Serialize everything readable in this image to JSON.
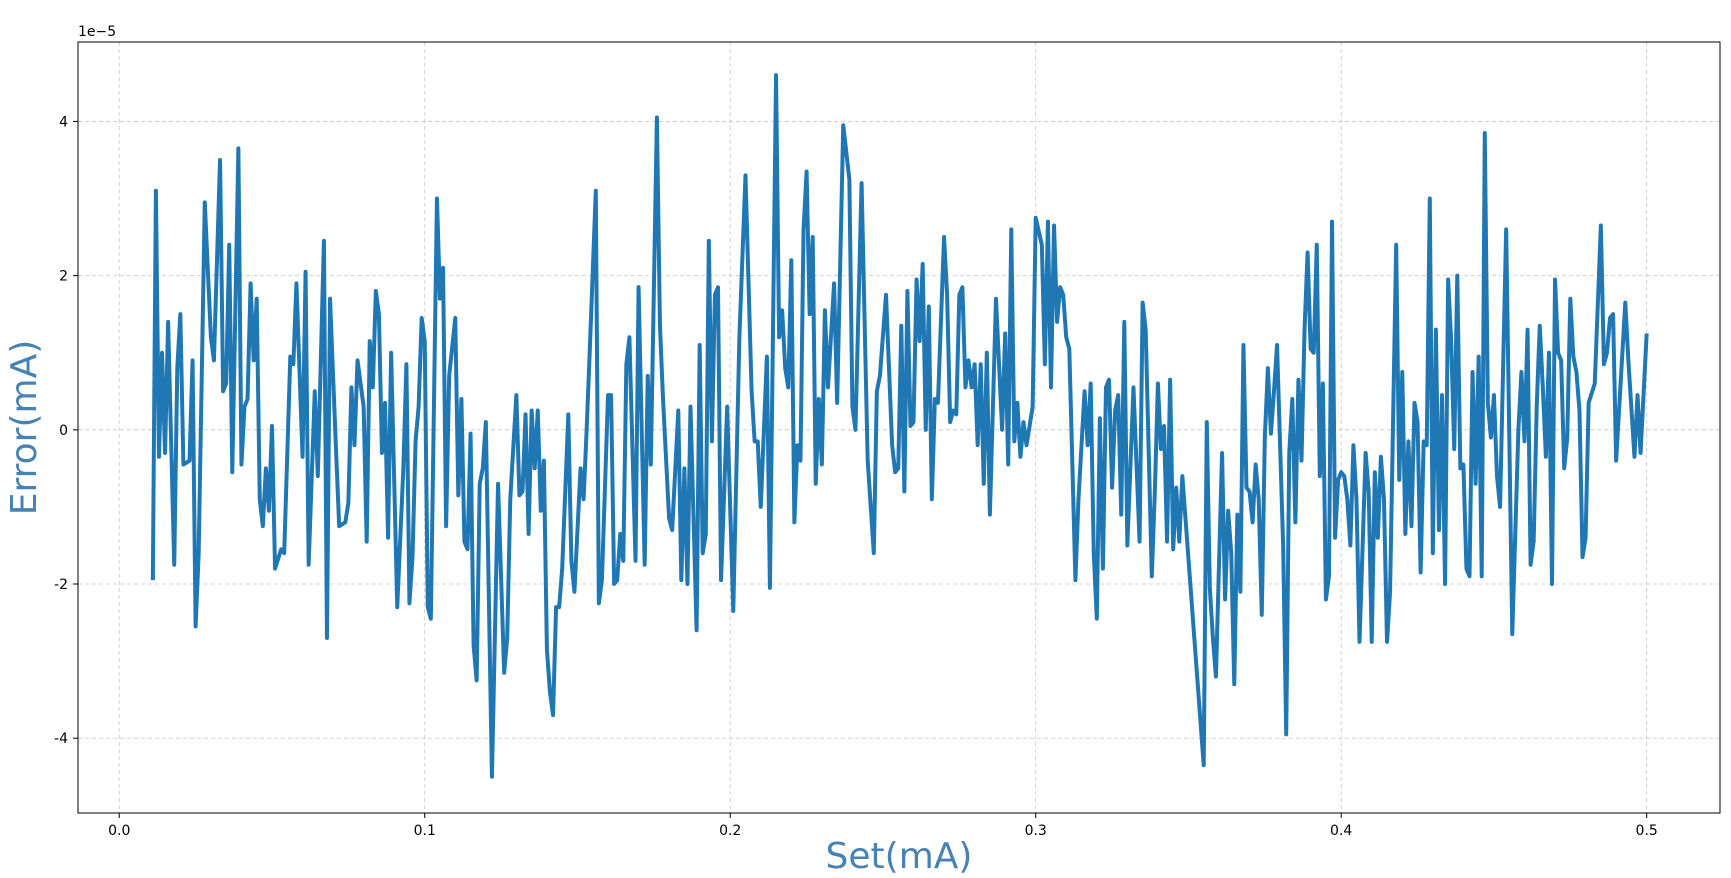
{
  "chart_data": {
    "type": "line",
    "xlabel": "Set(mA)",
    "ylabel": "Error(mA)",
    "offset_text": "1e−5",
    "label_color": "#4682b4",
    "color": "#1f77b4",
    "grid": true,
    "xlim": [
      -0.0135,
      0.524
    ],
    "ylim": [
      -4.97,
      5.03
    ],
    "xticks": [
      {
        "value": 0,
        "label": "0.0"
      },
      0.1,
      0.2,
      0.3,
      0.4,
      0.5
    ],
    "yticks": [
      -4,
      -2,
      0,
      2,
      4
    ],
    "x": [
      0.011,
      0.012,
      0.013,
      0.014,
      0.015,
      0.016,
      0.018,
      0.019,
      0.02,
      0.021,
      0.023,
      0.024,
      0.025,
      0.026,
      0.028,
      0.03,
      0.031,
      0.033,
      0.034,
      0.035,
      0.036,
      0.037,
      0.039,
      0.04,
      0.041,
      0.042,
      0.043,
      0.044,
      0.045,
      0.046,
      0.047,
      0.048,
      0.049,
      0.05,
      0.051,
      0.053,
      0.054,
      0.056,
      0.057,
      0.058,
      0.06,
      0.061,
      0.062,
      0.064,
      0.065,
      0.067,
      0.068,
      0.069,
      0.071,
      0.072,
      0.074,
      0.075,
      0.076,
      0.077,
      0.078,
      0.08,
      0.081,
      0.082,
      0.083,
      0.084,
      0.085,
      0.086,
      0.087,
      0.088,
      0.089,
      0.091,
      0.093,
      0.094,
      0.095,
      0.096,
      0.097,
      0.098,
      0.099,
      0.1,
      0.101,
      0.102,
      0.104,
      0.105,
      0.106,
      0.107,
      0.108,
      0.11,
      0.111,
      0.112,
      0.113,
      0.114,
      0.115,
      0.116,
      0.117,
      0.118,
      0.119,
      0.12,
      0.122,
      0.124,
      0.126,
      0.127,
      0.128,
      0.13,
      0.131,
      0.132,
      0.133,
      0.134,
      0.135,
      0.136,
      0.137,
      0.138,
      0.139,
      0.14,
      0.141,
      0.142,
      0.143,
      0.144,
      0.145,
      0.147,
      0.148,
      0.149,
      0.151,
      0.152,
      0.153,
      0.154,
      0.156,
      0.157,
      0.158,
      0.16,
      0.161,
      0.162,
      0.163,
      0.164,
      0.165,
      0.166,
      0.167,
      0.169,
      0.17,
      0.172,
      0.173,
      0.174,
      0.176,
      0.177,
      0.178,
      0.18,
      0.181,
      0.183,
      0.184,
      0.185,
      0.186,
      0.187,
      0.189,
      0.19,
      0.191,
      0.192,
      0.193,
      0.194,
      0.195,
      0.196,
      0.197,
      0.199,
      0.201,
      0.203,
      0.205,
      0.207,
      0.208,
      0.209,
      0.21,
      0.212,
      0.213,
      0.215,
      0.216,
      0.217,
      0.218,
      0.219,
      0.22,
      0.221,
      0.222,
      0.223,
      0.224,
      0.225,
      0.226,
      0.227,
      0.228,
      0.229,
      0.23,
      0.231,
      0.232,
      0.234,
      0.235,
      0.237,
      0.239,
      0.24,
      0.241,
      0.243,
      0.245,
      0.247,
      0.248,
      0.249,
      0.251,
      0.253,
      0.254,
      0.255,
      0.256,
      0.257,
      0.258,
      0.259,
      0.26,
      0.261,
      0.262,
      0.263,
      0.264,
      0.265,
      0.266,
      0.267,
      0.268,
      0.27,
      0.271,
      0.272,
      0.273,
      0.274,
      0.275,
      0.276,
      0.277,
      0.278,
      0.279,
      0.28,
      0.281,
      0.282,
      0.283,
      0.284,
      0.285,
      0.287,
      0.289,
      0.29,
      0.291,
      0.292,
      0.293,
      0.294,
      0.295,
      0.296,
      0.297,
      0.299,
      0.3,
      0.302,
      0.303,
      0.304,
      0.305,
      0.306,
      0.307,
      0.308,
      0.309,
      0.31,
      0.311,
      0.313,
      0.314,
      0.316,
      0.317,
      0.318,
      0.319,
      0.32,
      0.321,
      0.322,
      0.323,
      0.324,
      0.325,
      0.326,
      0.327,
      0.328,
      0.329,
      0.33,
      0.332,
      0.334,
      0.335,
      0.336,
      0.338,
      0.339,
      0.34,
      0.341,
      0.342,
      0.343,
      0.344,
      0.345,
      0.346,
      0.347,
      0.348,
      0.355,
      0.356,
      0.357,
      0.358,
      0.359,
      0.361,
      0.362,
      0.363,
      0.364,
      0.365,
      0.366,
      0.367,
      0.368,
      0.369,
      0.37,
      0.371,
      0.372,
      0.373,
      0.374,
      0.375,
      0.376,
      0.377,
      0.378,
      0.379,
      0.381,
      0.382,
      0.383,
      0.384,
      0.385,
      0.386,
      0.387,
      0.388,
      0.389,
      0.39,
      0.391,
      0.392,
      0.393,
      0.394,
      0.395,
      0.396,
      0.397,
      0.398,
      0.399,
      0.4,
      0.401,
      0.402,
      0.403,
      0.404,
      0.405,
      0.406,
      0.408,
      0.409,
      0.41,
      0.411,
      0.412,
      0.413,
      0.414,
      0.415,
      0.416,
      0.418,
      0.419,
      0.42,
      0.421,
      0.422,
      0.423,
      0.424,
      0.425,
      0.426,
      0.427,
      0.428,
      0.429,
      0.43,
      0.431,
      0.432,
      0.433,
      0.434,
      0.435,
      0.436,
      0.437,
      0.438,
      0.439,
      0.44,
      0.441,
      0.442,
      0.443,
      0.444,
      0.445,
      0.446,
      0.447,
      0.448,
      0.449,
      0.45,
      0.451,
      0.452,
      0.454,
      0.456,
      0.458,
      0.459,
      0.46,
      0.461,
      0.462,
      0.463,
      0.464,
      0.465,
      0.466,
      0.467,
      0.468,
      0.469,
      0.47,
      0.471,
      0.472,
      0.473,
      0.474,
      0.475,
      0.476,
      0.477,
      0.478,
      0.479,
      0.48,
      0.481,
      0.483,
      0.485,
      0.486,
      0.487,
      0.488,
      0.489,
      0.49,
      0.493,
      0.494,
      0.496,
      0.497,
      0.498,
      0.5
    ],
    "values": [
      -1.95,
      3.1,
      -0.35,
      1.0,
      -0.3,
      1.4,
      -1.75,
      0.8,
      1.5,
      -0.45,
      -0.4,
      0.9,
      -2.55,
      -1.6,
      2.95,
      1.2,
      0.9,
      3.5,
      0.5,
      0.6,
      2.4,
      -0.55,
      3.65,
      -0.45,
      0.3,
      0.4,
      1.9,
      0.9,
      1.7,
      -0.9,
      -1.25,
      -0.5,
      -1.05,
      0.05,
      -1.8,
      -1.55,
      -1.6,
      0.95,
      0.85,
      1.9,
      -0.35,
      2.05,
      -1.75,
      0.5,
      -0.6,
      2.45,
      -2.7,
      1.7,
      -0.3,
      -1.25,
      -1.2,
      -0.95,
      0.55,
      -0.2,
      0.9,
      0.3,
      -1.45,
      1.15,
      0.55,
      1.8,
      1.5,
      -0.3,
      0.35,
      -1.4,
      1.0,
      -2.3,
      -0.5,
      0.85,
      -2.25,
      -1.65,
      -0.15,
      0.3,
      1.45,
      1.15,
      -2.3,
      -2.45,
      3.0,
      1.7,
      2.1,
      -1.25,
      0.7,
      1.45,
      -0.85,
      0.4,
      -1.45,
      -1.55,
      -0.05,
      -2.8,
      -3.25,
      -0.7,
      -0.5,
      0.1,
      -4.5,
      -0.7,
      -3.15,
      -2.7,
      -0.9,
      0.45,
      -0.85,
      -0.8,
      0.2,
      -1.35,
      0.25,
      -0.5,
      0.25,
      -1.05,
      -0.4,
      -2.85,
      -3.4,
      -3.7,
      -2.3,
      -2.3,
      -1.8,
      0.2,
      -1.7,
      -2.1,
      -0.5,
      -0.9,
      0.0,
      1.0,
      3.1,
      -2.25,
      -1.95,
      0.45,
      0.45,
      -2.0,
      -1.95,
      -1.35,
      -1.7,
      0.85,
      1.2,
      -1.7,
      1.85,
      -1.75,
      0.7,
      -0.45,
      4.05,
      1.35,
      0.4,
      -1.15,
      -1.3,
      0.25,
      -1.95,
      -0.5,
      -2.0,
      0.3,
      -2.6,
      1.1,
      -1.6,
      -1.35,
      2.45,
      -0.15,
      1.75,
      1.85,
      -1.95,
      0.3,
      -2.35,
      1.2,
      3.3,
      0.5,
      -0.15,
      -0.15,
      -1.0,
      0.95,
      -2.05,
      4.6,
      1.2,
      1.55,
      0.8,
      0.55,
      2.2,
      -1.2,
      -0.2,
      -0.4,
      2.6,
      3.35,
      1.5,
      2.5,
      -0.7,
      0.4,
      -0.45,
      1.55,
      0.55,
      1.9,
      0.35,
      3.95,
      3.25,
      0.3,
      0.0,
      3.2,
      -0.4,
      -1.6,
      0.5,
      0.7,
      1.75,
      -0.2,
      -0.55,
      -0.5,
      1.35,
      -0.8,
      1.8,
      0.05,
      0.1,
      1.95,
      1.15,
      2.15,
      0.0,
      1.6,
      -0.9,
      0.4,
      0.35,
      2.5,
      1.75,
      0.1,
      0.25,
      0.2,
      1.75,
      1.85,
      0.55,
      0.9,
      0.55,
      0.85,
      -0.2,
      0.85,
      -0.7,
      1.0,
      -1.1,
      1.7,
      0.0,
      1.25,
      -0.45,
      2.6,
      -0.15,
      0.35,
      -0.35,
      0.1,
      -0.2,
      0.3,
      2.75,
      2.4,
      0.85,
      2.7,
      0.55,
      2.65,
      1.4,
      1.85,
      1.75,
      1.2,
      1.05,
      -1.95,
      -0.9,
      0.5,
      -0.2,
      0.6,
      -1.6,
      -2.45,
      0.15,
      -1.8,
      0.55,
      0.65,
      -0.75,
      0.25,
      0.45,
      -1.1,
      1.4,
      -1.5,
      0.55,
      -1.45,
      1.65,
      1.3,
      -1.9,
      -0.8,
      0.6,
      -0.25,
      0.05,
      -1.45,
      0.65,
      -1.55,
      -0.75,
      -1.45,
      -0.6,
      -4.35,
      0.1,
      -2.05,
      -2.7,
      -3.2,
      -0.3,
      -2.2,
      -1.05,
      -1.6,
      -3.3,
      -1.1,
      -2.1,
      1.1,
      -0.75,
      -0.8,
      -1.2,
      -0.45,
      -0.9,
      -2.4,
      -0.1,
      0.8,
      -0.05,
      0.5,
      1.1,
      -1.5,
      -3.95,
      -0.3,
      0.4,
      -1.2,
      0.65,
      -0.4,
      1.3,
      2.3,
      1.05,
      1.0,
      2.4,
      -0.6,
      0.6,
      -2.2,
      -1.9,
      2.7,
      -1.4,
      -0.65,
      -0.55,
      -0.6,
      -0.9,
      -1.5,
      -0.2,
      -0.9,
      -2.75,
      -0.3,
      -0.8,
      -2.75,
      -0.55,
      -1.4,
      -0.35,
      -0.9,
      -2.75,
      -2.1,
      2.4,
      -0.65,
      0.75,
      -1.35,
      -0.15,
      -1.25,
      0.35,
      0.1,
      -1.85,
      -0.15,
      -0.2,
      3.0,
      -1.6,
      1.3,
      -1.3,
      0.45,
      -2.0,
      1.95,
      1.15,
      -0.25,
      2.0,
      -0.5,
      -0.45,
      -1.8,
      -1.9,
      0.75,
      -0.7,
      0.95,
      -1.9,
      3.85,
      0.35,
      -0.1,
      0.45,
      -0.6,
      -1.0,
      2.6,
      -2.65,
      0.0,
      0.75,
      -0.15,
      1.3,
      -1.75,
      -1.45,
      0.3,
      1.35,
      0.55,
      -0.35,
      1.0,
      -2.0,
      1.95,
      1.0,
      0.9,
      -0.5,
      -0.1,
      1.7,
      0.95,
      0.75,
      0.25,
      -1.65,
      -1.4,
      0.35,
      0.6,
      2.65,
      0.85,
      1.0,
      1.45,
      1.5,
      -0.4,
      1.65,
      0.9,
      -0.35,
      0.45,
      -0.3,
      1.25
    ]
  }
}
